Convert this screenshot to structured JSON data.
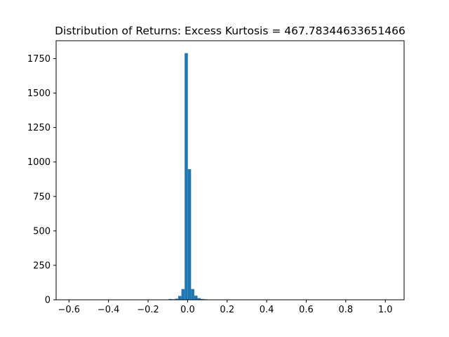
{
  "chart_data": {
    "type": "bar",
    "subtype": "histogram",
    "title": "Distribution of Returns: Excess Kurtosis = 467.78344633651466",
    "xlabel": "",
    "ylabel": "",
    "xlim": [
      -0.665,
      1.095
    ],
    "ylim": [
      0,
      1880
    ],
    "xticks": [
      -0.6,
      -0.4,
      -0.2,
      0.0,
      0.2,
      0.4,
      0.6,
      0.8,
      1.0
    ],
    "xtick_labels": [
      "−0.6",
      "−0.4",
      "−0.2",
      "0.0",
      "0.2",
      "0.4",
      "0.6",
      "0.8",
      "1.0"
    ],
    "yticks": [
      0,
      250,
      500,
      750,
      1000,
      1250,
      1500,
      1750
    ],
    "ytick_labels": [
      "0",
      "250",
      "500",
      "750",
      "1000",
      "1250",
      "1500",
      "1750"
    ],
    "grid": false,
    "legend": "none",
    "bar_color": "#1f77b4",
    "bin_width": 0.01625,
    "bins": [
      {
        "x0": -0.6475,
        "x1": -0.63125,
        "count": 1
      },
      {
        "x0": -0.5175,
        "x1": -0.50125,
        "count": 1
      },
      {
        "x0": -0.34,
        "x1": -0.32375,
        "count": 1
      },
      {
        "x0": -0.195,
        "x1": -0.17875,
        "count": 1
      },
      {
        "x0": -0.1475,
        "x1": -0.13125,
        "count": 2
      },
      {
        "x0": -0.1125,
        "x1": -0.09625,
        "count": 2
      },
      {
        "x0": -0.09625,
        "x1": -0.08,
        "count": 6
      },
      {
        "x0": -0.08,
        "x1": -0.06375,
        "count": 4
      },
      {
        "x0": -0.06375,
        "x1": -0.0475,
        "count": 8
      },
      {
        "x0": -0.0475,
        "x1": -0.03125,
        "count": 28
      },
      {
        "x0": -0.03125,
        "x1": -0.015,
        "count": 78
      },
      {
        "x0": -0.015,
        "x1": 0.00125,
        "count": 1790
      },
      {
        "x0": 0.00125,
        "x1": 0.0175,
        "count": 948
      },
      {
        "x0": 0.0175,
        "x1": 0.03375,
        "count": 78
      },
      {
        "x0": 0.03375,
        "x1": 0.05,
        "count": 30
      },
      {
        "x0": 0.05,
        "x1": 0.06625,
        "count": 12
      },
      {
        "x0": 0.06625,
        "x1": 0.0825,
        "count": 6
      },
      {
        "x0": 0.0825,
        "x1": 0.09875,
        "count": 4
      },
      {
        "x0": 0.09875,
        "x1": 0.115,
        "count": 2
      },
      {
        "x0": 0.13125,
        "x1": 0.1475,
        "count": 2
      },
      {
        "x0": 0.18,
        "x1": 0.19625,
        "count": 1
      },
      {
        "x0": 0.26125,
        "x1": 0.2775,
        "count": 1
      },
      {
        "x0": 0.4075,
        "x1": 0.42375,
        "count": 1
      },
      {
        "x0": 0.6025,
        "x1": 0.61875,
        "count": 1
      },
      {
        "x0": 1.0,
        "x1": 1.01625,
        "count": 1
      }
    ]
  }
}
